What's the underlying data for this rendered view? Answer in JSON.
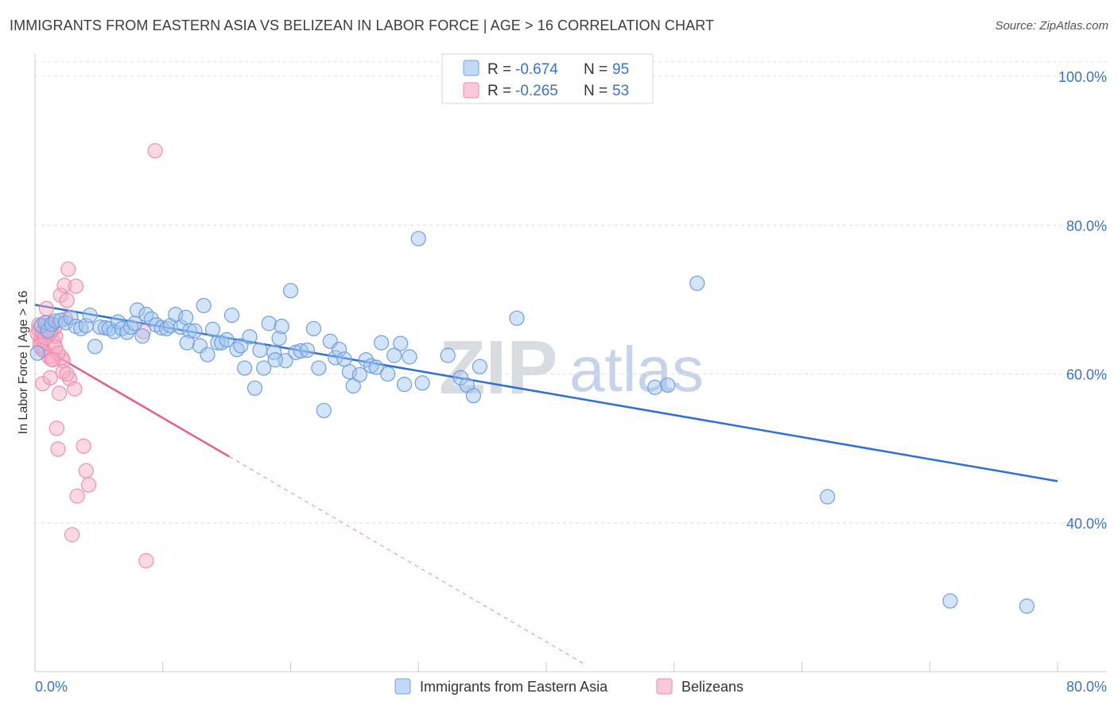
{
  "header": {
    "title": "IMMIGRANTS FROM EASTERN ASIA VS BELIZEAN IN LABOR FORCE | AGE > 16 CORRELATION CHART",
    "source": "Source: ZipAtlas.com"
  },
  "watermark": {
    "zip": "ZIP",
    "atlas": "atlas"
  },
  "legend": {
    "rows": [
      {
        "r_label": "R =",
        "r_value": "-0.674",
        "n_label": "N =",
        "n_value": "95",
        "color": "#6fa3e8"
      },
      {
        "r_label": "R =",
        "r_value": "-0.265",
        "n_label": "N =",
        "n_value": "53",
        "color": "#f08aa9"
      }
    ]
  },
  "bottom_legend": {
    "items": [
      {
        "label": "Immigrants from Eastern Asia",
        "color": "#6fa3e8"
      },
      {
        "label": "Belizeans",
        "color": "#f08aa9"
      }
    ]
  },
  "chart_data": {
    "type": "scatter",
    "title": "IMMIGRANTS FROM EASTERN ASIA VS BELIZEAN IN LABOR FORCE | AGE > 16 CORRELATION CHART",
    "xlabel": "",
    "ylabel": "In Labor Force | Age > 16",
    "xlim": [
      0,
      80
    ],
    "ylim": [
      20,
      103
    ],
    "x_tick_labels": [
      "0.0%",
      "80.0%"
    ],
    "y_ticks": [
      40,
      60,
      80,
      100
    ],
    "y_tick_labels": [
      "40.0%",
      "60.0%",
      "80.0%",
      "100.0%"
    ],
    "grid": true,
    "legend_position": "top-center",
    "series": [
      {
        "name": "Immigrants from Eastern Asia",
        "color": "#6fa3e8",
        "points": [
          [
            0.2,
            62.8
          ],
          [
            0.5,
            66.5
          ],
          [
            0.8,
            66.9
          ],
          [
            1.0,
            65.8
          ],
          [
            1.3,
            66.7
          ],
          [
            1.6,
            67.1
          ],
          [
            2.0,
            67.2
          ],
          [
            2.4,
            66.9
          ],
          [
            2.8,
            67.6
          ],
          [
            3.2,
            66.4
          ],
          [
            3.6,
            66.1
          ],
          [
            4.0,
            66.5
          ],
          [
            4.3,
            67.9
          ],
          [
            4.7,
            63.7
          ],
          [
            5.1,
            66.3
          ],
          [
            5.5,
            66.2
          ],
          [
            5.8,
            66.1
          ],
          [
            6.2,
            65.7
          ],
          [
            6.5,
            67.0
          ],
          [
            6.8,
            66.1
          ],
          [
            7.2,
            65.6
          ],
          [
            7.5,
            66.3
          ],
          [
            7.8,
            66.8
          ],
          [
            8.0,
            68.6
          ],
          [
            8.4,
            65.1
          ],
          [
            8.7,
            68.0
          ],
          [
            9.1,
            67.4
          ],
          [
            9.5,
            66.6
          ],
          [
            9.9,
            66.2
          ],
          [
            10.3,
            66.1
          ],
          [
            10.6,
            66.5
          ],
          [
            11.0,
            68.0
          ],
          [
            11.4,
            66.3
          ],
          [
            11.8,
            67.6
          ],
          [
            12.1,
            65.8
          ],
          [
            12.5,
            65.8
          ],
          [
            12.9,
            63.8
          ],
          [
            13.2,
            69.2
          ],
          [
            13.5,
            62.6
          ],
          [
            13.9,
            66.0
          ],
          [
            14.3,
            64.2
          ],
          [
            14.6,
            64.2
          ],
          [
            15.0,
            64.6
          ],
          [
            15.4,
            67.9
          ],
          [
            15.8,
            63.3
          ],
          [
            16.1,
            63.8
          ],
          [
            16.4,
            60.8
          ],
          [
            16.8,
            65.0
          ],
          [
            17.2,
            58.1
          ],
          [
            17.6,
            63.2
          ],
          [
            17.9,
            60.8
          ],
          [
            18.3,
            66.8
          ],
          [
            18.7,
            62.9
          ],
          [
            19.1,
            64.8
          ],
          [
            19.3,
            66.4
          ],
          [
            19.6,
            61.8
          ],
          [
            20.0,
            71.2
          ],
          [
            20.4,
            62.9
          ],
          [
            20.8,
            63.1
          ],
          [
            21.3,
            63.2
          ],
          [
            21.8,
            66.1
          ],
          [
            22.2,
            60.8
          ],
          [
            22.6,
            55.1
          ],
          [
            23.1,
            64.4
          ],
          [
            23.5,
            62.2
          ],
          [
            23.8,
            63.3
          ],
          [
            24.2,
            62.0
          ],
          [
            24.6,
            60.3
          ],
          [
            24.9,
            58.4
          ],
          [
            25.4,
            59.9
          ],
          [
            25.9,
            61.9
          ],
          [
            26.3,
            61.1
          ],
          [
            26.7,
            60.9
          ],
          [
            27.1,
            64.2
          ],
          [
            27.6,
            60.0
          ],
          [
            28.1,
            62.5
          ],
          [
            28.6,
            64.1
          ],
          [
            28.9,
            58.6
          ],
          [
            29.3,
            62.3
          ],
          [
            30.0,
            78.2
          ],
          [
            30.3,
            58.8
          ],
          [
            32.3,
            62.5
          ],
          [
            33.3,
            59.5
          ],
          [
            33.8,
            58.5
          ],
          [
            34.3,
            57.1
          ],
          [
            34.8,
            61.0
          ],
          [
            37.7,
            67.5
          ],
          [
            48.5,
            58.2
          ],
          [
            49.5,
            58.5
          ],
          [
            51.8,
            72.2
          ],
          [
            62.0,
            43.5
          ],
          [
            71.6,
            29.5
          ],
          [
            77.6,
            28.8
          ],
          [
            11.9,
            64.2
          ],
          [
            18.8,
            61.9
          ]
        ],
        "trend": {
          "x": [
            0,
            80
          ],
          "y": [
            69.3,
            45.6
          ]
        }
      },
      {
        "name": "Belizeans",
        "color": "#f08aa9",
        "points": [
          [
            0.2,
            65.4
          ],
          [
            0.3,
            66.6
          ],
          [
            0.4,
            64.2
          ],
          [
            0.5,
            63.4
          ],
          [
            0.6,
            58.7
          ],
          [
            0.7,
            63.1
          ],
          [
            0.8,
            66.5
          ],
          [
            0.9,
            68.8
          ],
          [
            1.0,
            65.3
          ],
          [
            1.1,
            62.3
          ],
          [
            1.2,
            59.5
          ],
          [
            1.3,
            65.8
          ],
          [
            1.4,
            66.7
          ],
          [
            1.5,
            64.2
          ],
          [
            1.6,
            65.1
          ],
          [
            1.7,
            52.7
          ],
          [
            1.8,
            49.9
          ],
          [
            1.9,
            57.4
          ],
          [
            2.0,
            70.6
          ],
          [
            2.1,
            62.2
          ],
          [
            2.2,
            61.8
          ],
          [
            2.3,
            71.9
          ],
          [
            2.4,
            67.4
          ],
          [
            2.5,
            69.9
          ],
          [
            2.6,
            74.1
          ],
          [
            2.7,
            59.4
          ],
          [
            2.9,
            38.4
          ],
          [
            3.1,
            58.0
          ],
          [
            3.2,
            71.8
          ],
          [
            3.3,
            43.6
          ],
          [
            4.0,
            47.0
          ],
          [
            3.8,
            50.3
          ],
          [
            4.2,
            45.1
          ],
          [
            8.7,
            34.9
          ],
          [
            9.4,
            90.0
          ],
          [
            0.3,
            66.0
          ],
          [
            0.5,
            65.0
          ],
          [
            0.7,
            64.6
          ],
          [
            0.9,
            66.3
          ],
          [
            1.1,
            65.5
          ],
          [
            1.3,
            62.0
          ],
          [
            1.5,
            66.1
          ],
          [
            1.6,
            63.6
          ],
          [
            1.8,
            62.8
          ],
          [
            2.2,
            60.3
          ],
          [
            0.4,
            63.8
          ],
          [
            0.6,
            65.7
          ],
          [
            0.8,
            64.9
          ],
          [
            1.0,
            66.9
          ],
          [
            1.2,
            65.6
          ],
          [
            1.4,
            61.9
          ],
          [
            8.5,
            65.7
          ],
          [
            2.5,
            60.0
          ]
        ],
        "trend": {
          "x": [
            0,
            15.2
          ],
          "y": [
            64.1,
            48.9
          ]
        },
        "trend_extension": {
          "x": [
            15.2,
            43.0
          ],
          "y": [
            48.9,
            21.0
          ]
        }
      }
    ]
  }
}
